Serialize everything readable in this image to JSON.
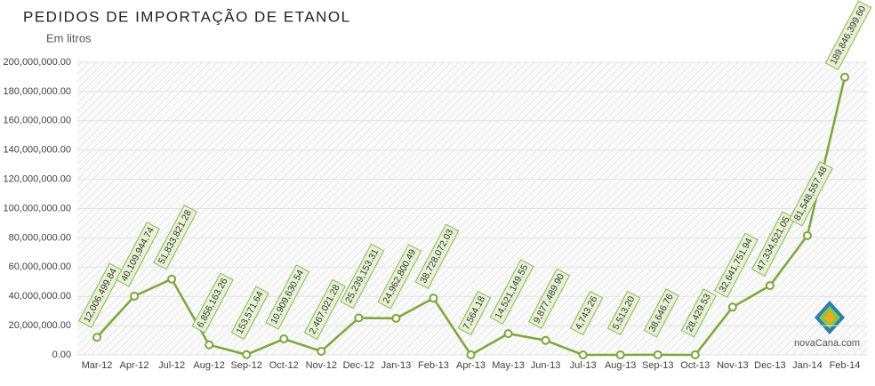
{
  "chart_data": {
    "type": "line",
    "title": "PEDIDOS DE IMPORTAÇÃO DE ETANOL",
    "subtitle": "Em litros",
    "logo_text": "novaCana.com",
    "categories": [
      "Mar-12",
      "Apr-12",
      "Jul-12",
      "Aug-12",
      "Sep-12",
      "Oct-12",
      "Nov-12",
      "Dec-12",
      "Jan-13",
      "Feb-13",
      "Apr-13",
      "May-13",
      "Jun-13",
      "Jul-13",
      "Aug-13",
      "Sep-13",
      "Oct-13",
      "Nov-13",
      "Dec-13",
      "Jan-14",
      "Feb-14"
    ],
    "values": [
      12006499.84,
      40109944.74,
      51833821.28,
      6856163.26,
      153571.64,
      10909630.54,
      2467021.28,
      25239153.31,
      24962800.49,
      38728072.03,
      7564.18,
      14521149.55,
      9877489.9,
      4743.26,
      5513.2,
      38646.76,
      28429.53,
      32641751.94,
      47334521.05,
      81548557.48,
      189846399.6
    ],
    "value_labels": [
      "12,006,499.84",
      "40,109,944.74",
      "51,833,821.28",
      "6,856,163.26",
      "153,571.64",
      "10,909,630.54",
      "2,467,021.28",
      "25,239,153.31",
      "24,962,800.49",
      "38,728,072.03",
      "7,564.18",
      "14,521,149.55",
      "9,877,489.90",
      "4,743.26",
      "5,513.20",
      "38,646.76",
      "28,429.53",
      "32,641,751.94",
      "47,334,521.05",
      "81,548,557.48",
      "189,846,399.60"
    ],
    "color": "#7ba73c",
    "ylim": [
      0,
      200000000
    ],
    "yticks": [
      {
        "value": 0,
        "label": "0.00"
      },
      {
        "value": 20000000,
        "label": "20,000,000.00"
      },
      {
        "value": 40000000,
        "label": "40,000,000.00"
      },
      {
        "value": 60000000,
        "label": "60,000,000.00"
      },
      {
        "value": 80000000,
        "label": "80,000,000.00"
      },
      {
        "value": 100000000,
        "label": "100,000,000.00"
      },
      {
        "value": 120000000,
        "label": "120,000,000.00"
      },
      {
        "value": 140000000,
        "label": "140,000,000.00"
      },
      {
        "value": 160000000,
        "label": "160,000,000.00"
      },
      {
        "value": 180000000,
        "label": "180,000,000.00"
      },
      {
        "value": 200000000,
        "label": "200,000,000.00"
      }
    ],
    "grid": true
  }
}
